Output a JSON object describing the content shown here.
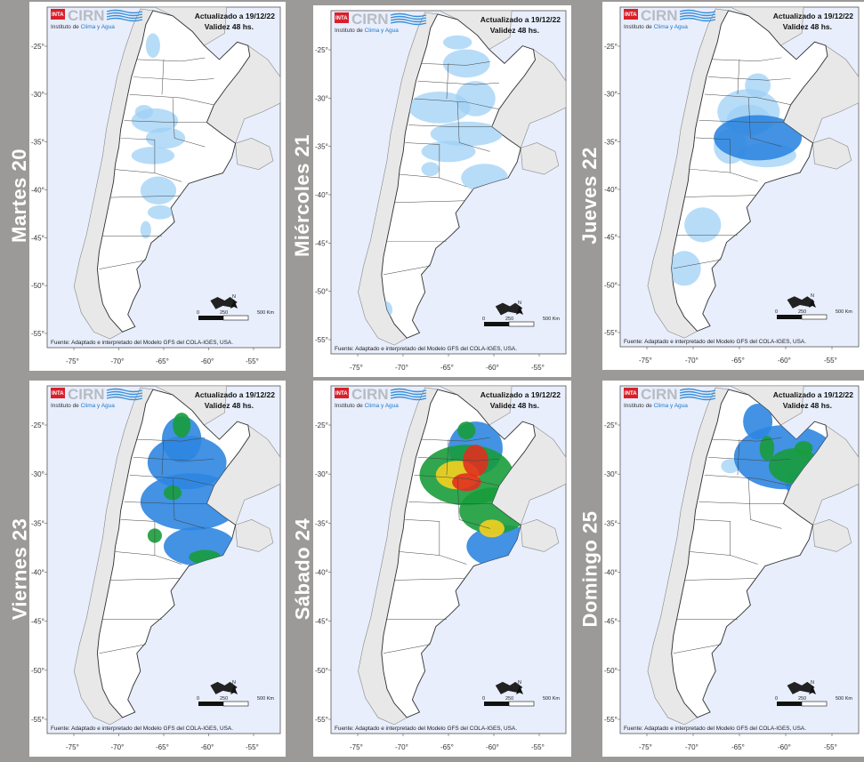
{
  "days": [
    "Martes 20",
    "Miércoles 21",
    "Jueves 22",
    "Viernes 23",
    "Sábado 24",
    "Domingo 25"
  ],
  "map": {
    "brand": "CIRN",
    "institute_prefix": "Instituto de ",
    "institute_highlight": "Clima y Agua",
    "logo": "INTA",
    "updated": "Actualizado a 19/12/22",
    "validity": "Validez 48 hs.",
    "source": "Fuente: Adaptado e interpretado del Modelo GFS del COLA-IGES, USA.",
    "lat_labels": [
      "-25°",
      "-30°",
      "-35°",
      "-40°",
      "-45°",
      "-50°",
      "-55°"
    ],
    "lon_labels": [
      "-75°",
      "-70°",
      "-65°",
      "-60°",
      "-55°"
    ],
    "north": "N",
    "scale_labels": [
      "0",
      "250",
      "500 Km"
    ]
  },
  "colors": {
    "background": "#9c9a98",
    "ocean": "#e8eefc",
    "land": "#ffffff",
    "neighbors": "#e8e8e8",
    "rain_light": "#9fd0f5",
    "rain_medium": "#2f86e0",
    "rain_heavy": "#1a9c3c",
    "rain_very_heavy": "#f5d020",
    "rain_extreme": "#e03020"
  }
}
